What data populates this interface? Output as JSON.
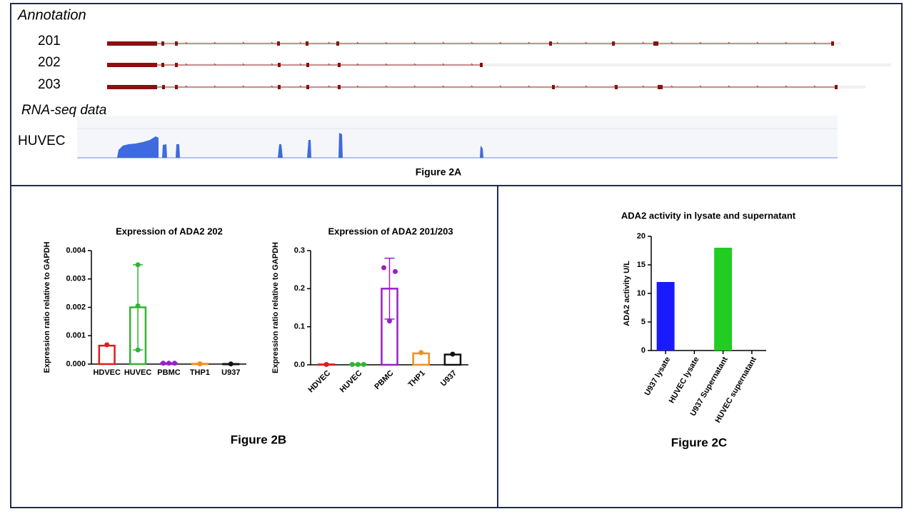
{
  "figure_a": {
    "annotation_title": "Annotation",
    "transcripts": [
      "201",
      "202",
      "203"
    ],
    "rnaseq_title": "RNA-seq data",
    "track_label": "HUVEC",
    "caption": "Figure 2A"
  },
  "captions": {
    "b": "Figure 2B",
    "c": "Figure 2C"
  },
  "chart_data": [
    {
      "type": "bar",
      "title": "Expression of ADA2 202",
      "y_label": "Expression ratio relative to GAPDH",
      "categories": [
        "HDVEC",
        "HUVEC",
        "PBMC",
        "THP1",
        "U937"
      ],
      "values": [
        0.00065,
        0.002,
        3e-05,
        1e-05,
        5e-06
      ],
      "errors": [
        null,
        0.0015,
        null,
        null,
        null
      ],
      "points": [
        [
          0.00068
        ],
        [
          0.0035,
          0.00205,
          0.0005
        ],
        [
          3e-05,
          3e-05,
          3e-05
        ],
        [
          1e-05
        ],
        [
          5e-06
        ]
      ],
      "colors": [
        "#e31a1c",
        "#33b333",
        "#9b1fc9",
        "#f28c1e",
        "#111111"
      ],
      "filled": false,
      "rotate_labels": false,
      "ylim": [
        0,
        0.004
      ],
      "yticks": [
        {
          "value": 0,
          "label": "0.000"
        },
        {
          "value": 0.001,
          "label": "0.001"
        },
        {
          "value": 0.002,
          "label": "0.002"
        },
        {
          "value": 0.003,
          "label": "0.003"
        },
        {
          "value": 0.004,
          "label": "0.004"
        }
      ]
    },
    {
      "type": "bar",
      "title": "Expression of ADA2 201/203",
      "y_label": "Expression ratio relative to GAPDH",
      "categories": [
        "HDVEC",
        "HUVEC",
        "PBMC",
        "THP1",
        "U937"
      ],
      "values": [
        0.001,
        0.001,
        0.2,
        0.03,
        0.027
      ],
      "errors": [
        null,
        null,
        0.08,
        null,
        null
      ],
      "points": [
        [
          0.001
        ],
        [
          0.001,
          0.001,
          0.001
        ],
        [
          0.255,
          0.245,
          0.115
        ],
        [
          0.032
        ],
        [
          0.028
        ]
      ],
      "colors": [
        "#e31a1c",
        "#33b333",
        "#9b1fc9",
        "#f28c1e",
        "#111111"
      ],
      "filled": false,
      "rotate_labels": true,
      "ylim": [
        0,
        0.3
      ],
      "yticks": [
        {
          "value": 0,
          "label": "0.0"
        },
        0.1,
        0.2,
        0.3
      ]
    },
    {
      "type": "bar",
      "title": "ADA2 activity in lysate and supernatant",
      "y_label": "ADA2 activity U/L",
      "categories": [
        "U937 lysate",
        "HUVEC lysate",
        "U937 Supernatant",
        "HUVEC supernatant"
      ],
      "values": [
        12,
        0,
        18,
        0
      ],
      "colors": [
        "#1a1aff",
        "#1a1aff",
        "#22cc22",
        "#22cc22"
      ],
      "filled": true,
      "rotate_labels": true,
      "ylim": [
        0,
        20
      ],
      "yticks": [
        0,
        5,
        10,
        15,
        20
      ]
    }
  ]
}
